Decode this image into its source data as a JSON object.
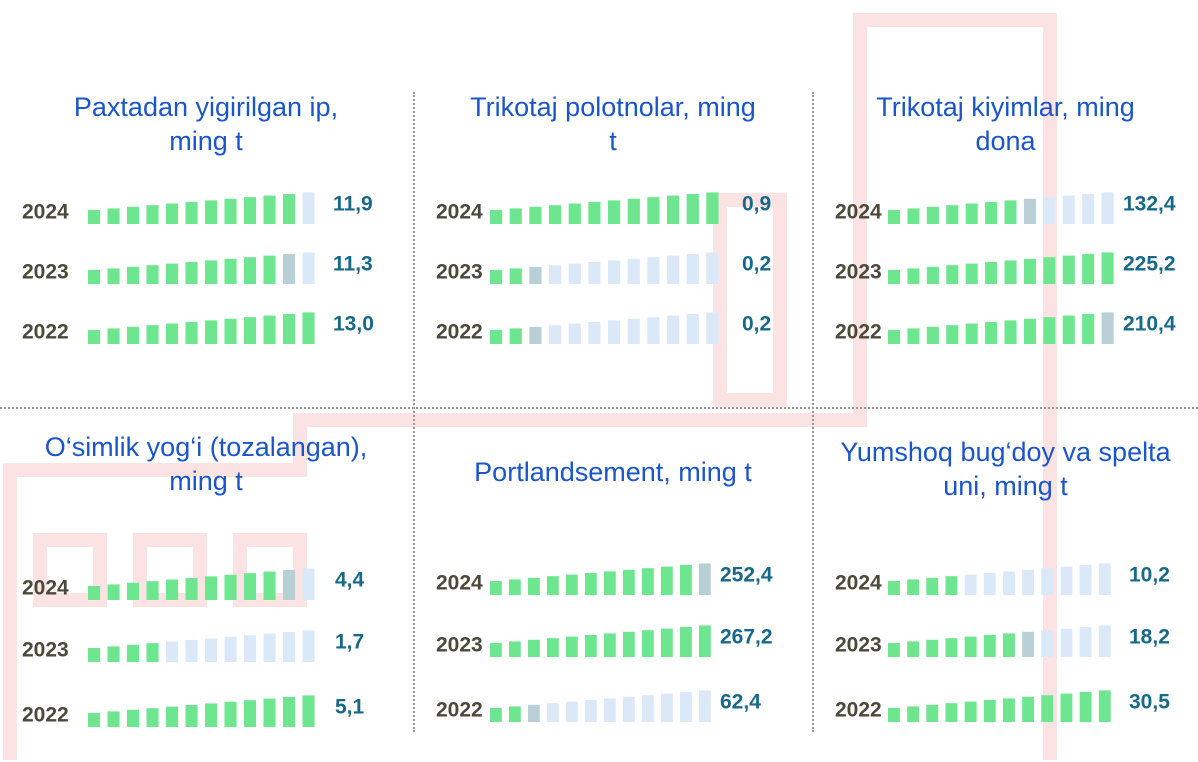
{
  "chart_data": [
    {
      "type": "bar",
      "title": "Paxtadan yigirilgan ip, ming t",
      "categories": [
        "2024",
        "2023",
        "2022"
      ],
      "values": [
        11.9,
        11.3,
        13.0
      ],
      "value_labels": [
        "11,9",
        "11,3",
        "13,0"
      ],
      "color": "#6ee58f"
    },
    {
      "type": "bar",
      "title": "Trikotaj polotnolar, ming t",
      "categories": [
        "2024",
        "2023",
        "2022"
      ],
      "values": [
        0.9,
        0.2,
        0.2
      ],
      "value_labels": [
        "0,9",
        "0,2",
        "0,2"
      ],
      "color": "#6ee58f"
    },
    {
      "type": "bar",
      "title": "Trikotaj kiyimlar, ming dona",
      "categories": [
        "2024",
        "2023",
        "2022"
      ],
      "values": [
        132.4,
        225.2,
        210.4
      ],
      "value_labels": [
        "132,4",
        "225,2",
        "210,4"
      ],
      "color": "#6ee58f"
    },
    {
      "type": "bar",
      "title": "O‘simlik yog‘i (tozalangan), ming t",
      "categories": [
        "2024",
        "2023",
        "2022"
      ],
      "values": [
        4.4,
        1.7,
        5.1
      ],
      "value_labels": [
        "4,4",
        "1,7",
        "5,1"
      ],
      "color": "#6ee58f"
    },
    {
      "type": "bar",
      "title": "Portlandsement, ming t",
      "categories": [
        "2024",
        "2023",
        "2022"
      ],
      "values": [
        252.4,
        267.2,
        62.4
      ],
      "value_labels": [
        "252,4",
        "267,2",
        "62,4"
      ],
      "color": "#6ee58f"
    },
    {
      "type": "bar",
      "title": "Yumshoq bug‘doy va spelta uni, ming t",
      "categories": [
        "2024",
        "2023",
        "2022"
      ],
      "values": [
        10.2,
        18.2,
        30.5
      ],
      "value_labels": [
        "10,2",
        "18,2",
        "30,5"
      ],
      "color": "#6ee58f"
    }
  ]
}
